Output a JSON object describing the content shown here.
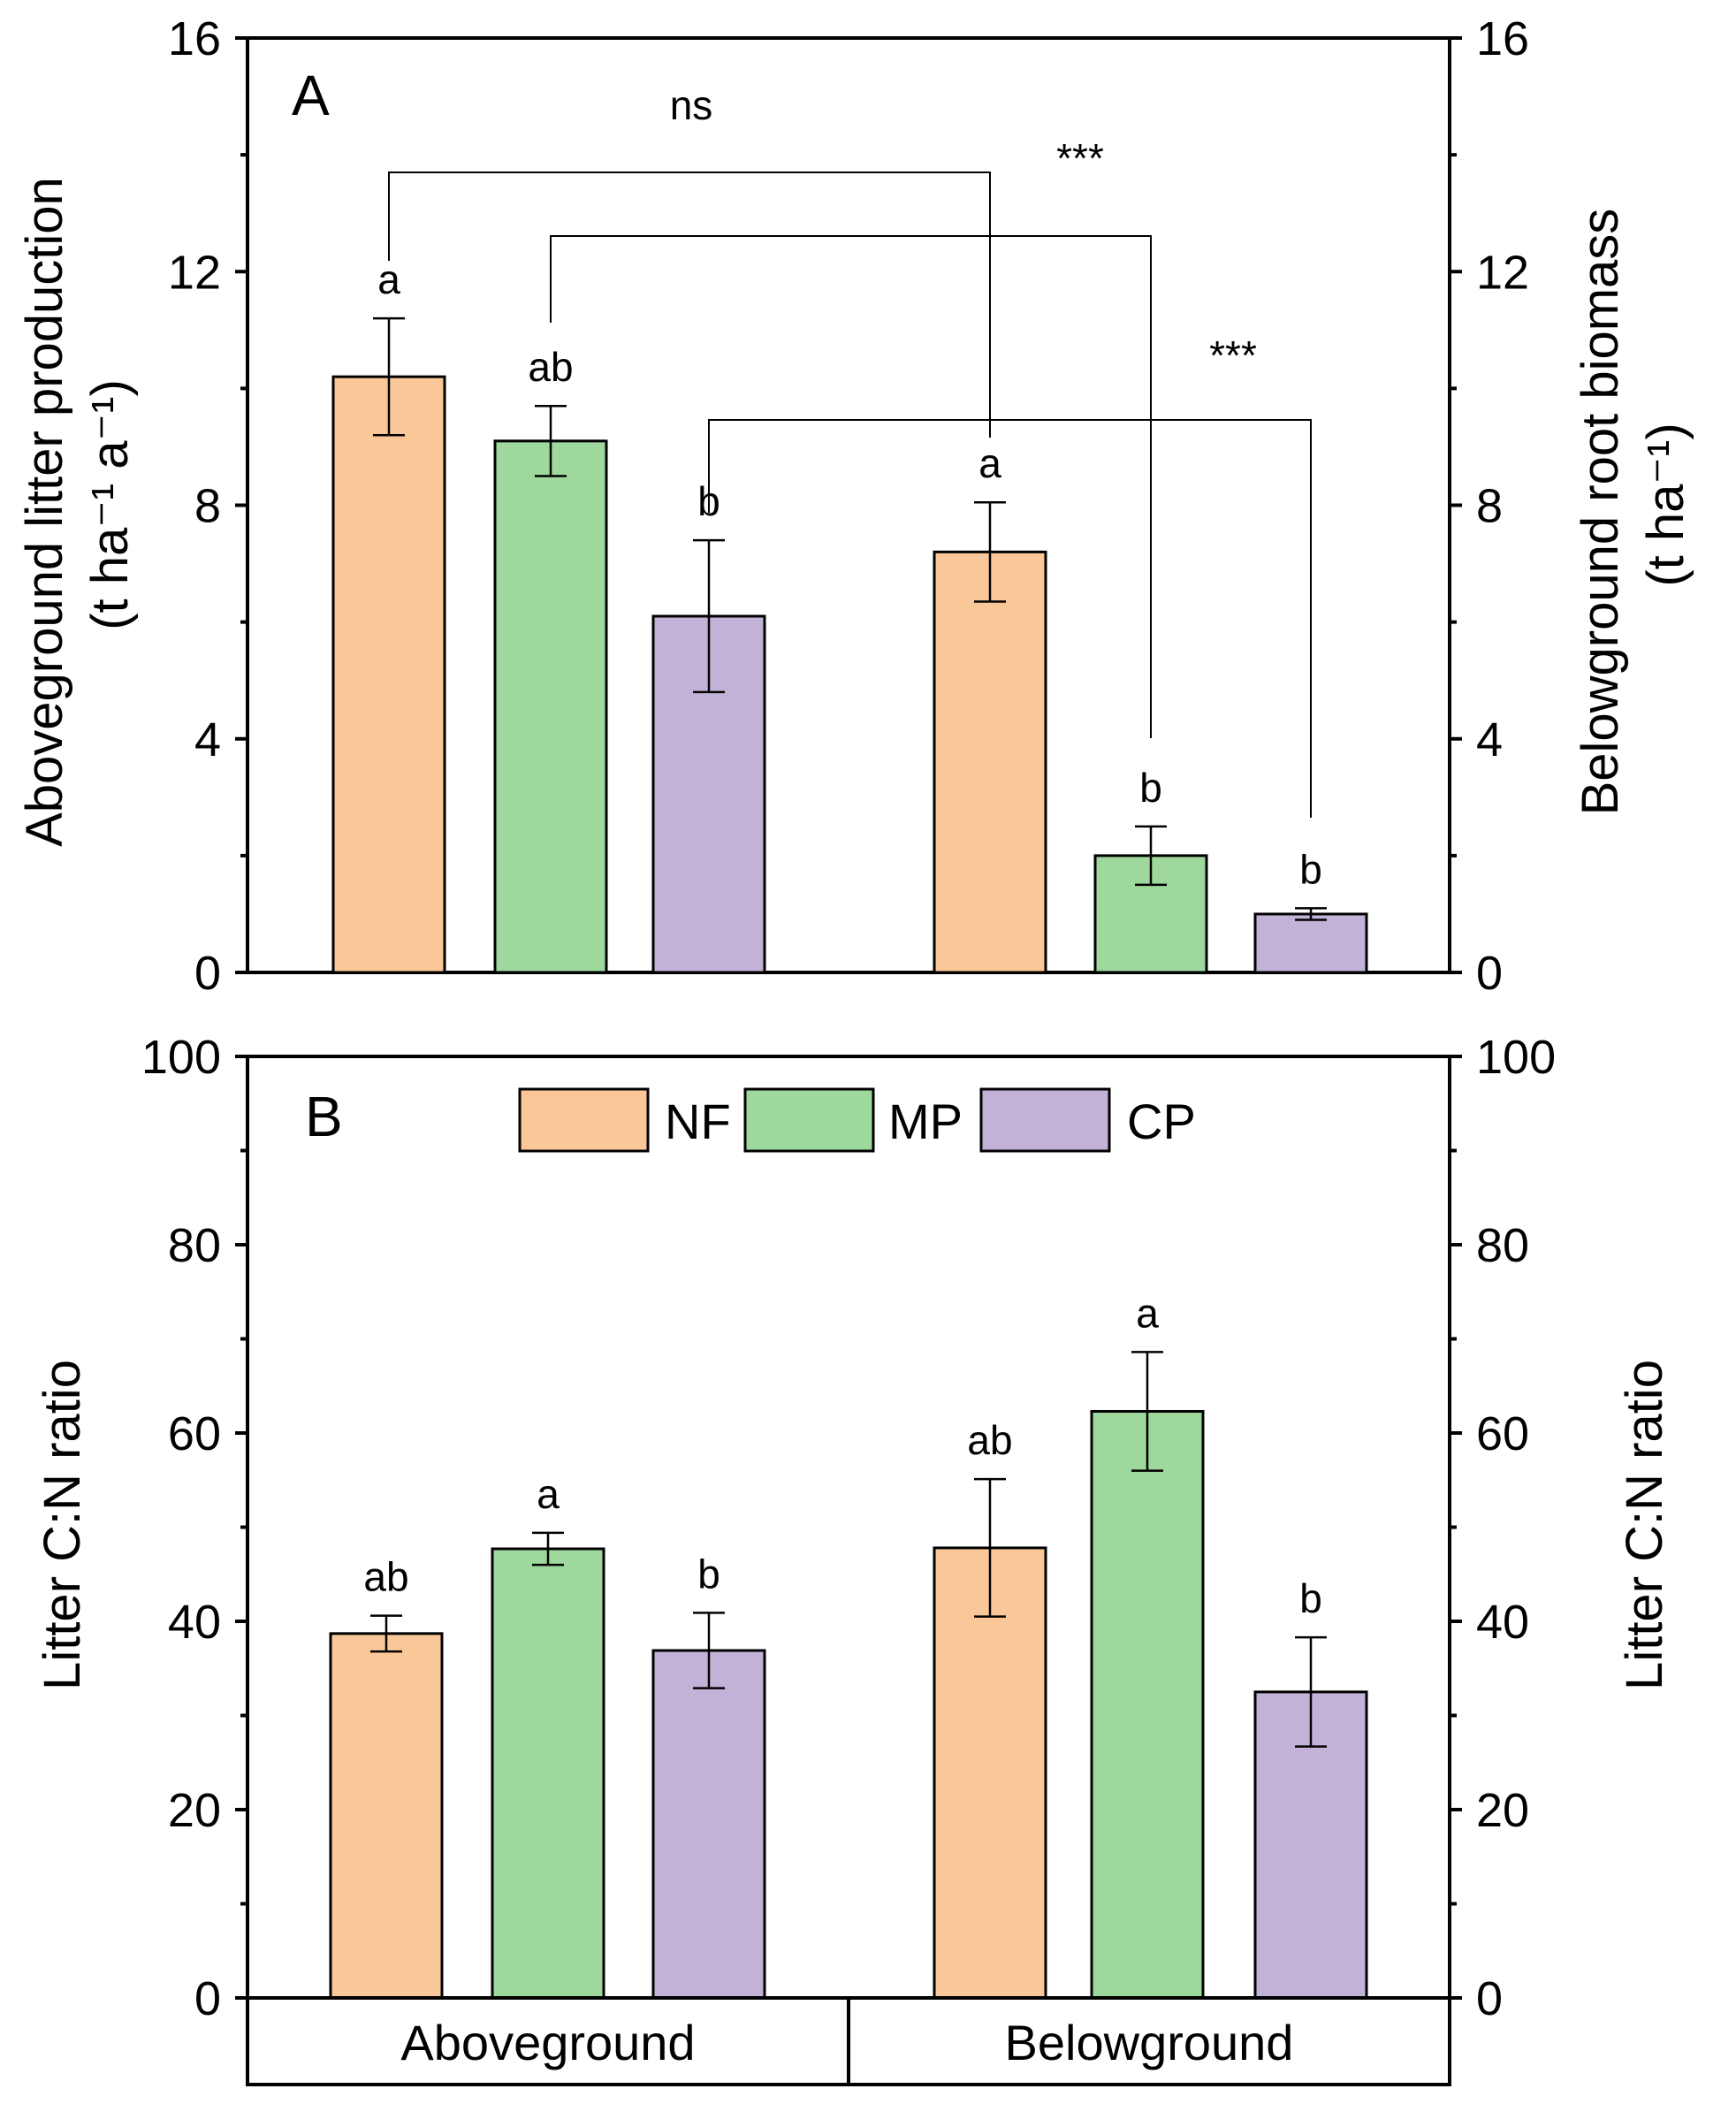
{
  "legend": [
    {
      "label": "NF",
      "color": "#fac898"
    },
    {
      "label": "MP",
      "color": "#9ed89c"
    },
    {
      "label": "CP",
      "color": "#c2b2d7"
    }
  ],
  "categories": [
    "Aboveground",
    "Belowground"
  ],
  "chart_data": [
    {
      "type": "bar",
      "panel": "A",
      "ylabel_left": [
        "Aboveground litter production",
        "(t ha⁻¹ a⁻¹)"
      ],
      "ylabel_right": [
        "Belowground root biomass",
        "(t ha⁻¹)"
      ],
      "ylim": [
        0,
        16
      ],
      "yticks": [
        0,
        4,
        8,
        12,
        16
      ],
      "categories": [
        "Aboveground",
        "Belowground"
      ],
      "series": [
        {
          "name": "NF",
          "values": [
            10.2,
            7.2
          ],
          "errors": [
            1.0,
            0.85
          ],
          "letters": [
            "a",
            "a"
          ]
        },
        {
          "name": "MP",
          "values": [
            9.1,
            2.0
          ],
          "errors": [
            0.6,
            0.5
          ],
          "letters": [
            "ab",
            "b"
          ]
        },
        {
          "name": "CP",
          "values": [
            6.1,
            1.0
          ],
          "errors": [
            1.3,
            0.1
          ],
          "letters": [
            "b",
            "b"
          ]
        }
      ],
      "annotations": [
        "ns",
        "***",
        "***"
      ]
    },
    {
      "type": "bar",
      "panel": "B",
      "ylabel_left": "Litter C:N ratio",
      "ylabel_right": "Litter C:N ratio",
      "ylim": [
        0,
        100
      ],
      "yticks": [
        0,
        20,
        40,
        60,
        80,
        100
      ],
      "categories": [
        "Aboveground",
        "Belowground"
      ],
      "series": [
        {
          "name": "NF",
          "values": [
            38.7,
            47.8
          ],
          "errors": [
            1.9,
            7.3
          ],
          "letters": [
            "ab",
            "ab"
          ]
        },
        {
          "name": "MP",
          "values": [
            47.7,
            62.3
          ],
          "errors": [
            1.7,
            6.3
          ],
          "letters": [
            "a",
            "a"
          ]
        },
        {
          "name": "CP",
          "values": [
            36.9,
            32.5
          ],
          "errors": [
            4.0,
            5.8
          ],
          "letters": [
            "b",
            "b"
          ]
        }
      ]
    }
  ]
}
